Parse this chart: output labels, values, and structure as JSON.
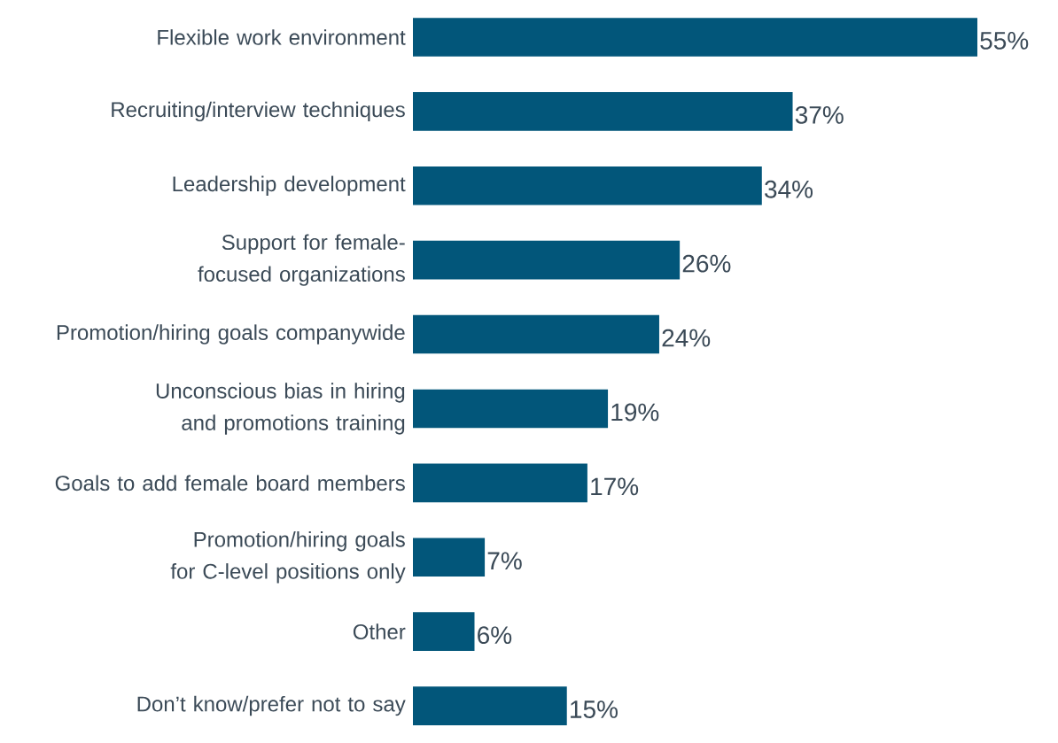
{
  "chart_data": {
    "type": "bar",
    "orientation": "horizontal",
    "color": "#02567a",
    "categories": [
      "Flexible work environment",
      "Recruiting/interview techniques",
      "Leadership development",
      "Support for female-focused organizations",
      "Promotion/hiring goals companywide",
      "Unconscious bias in hiring and promotions training",
      "Goals to add female board members",
      "Promotion/hiring goals for C-level positions only",
      "Other",
      "Don’t know/prefer not to say"
    ],
    "values": [
      55,
      37,
      34,
      26,
      24,
      19,
      17,
      7,
      6,
      15
    ],
    "value_labels": [
      "55%",
      "37%",
      "34%",
      "26%",
      "24%",
      "19%",
      "17%",
      "7%",
      "6%",
      "15%"
    ]
  }
}
